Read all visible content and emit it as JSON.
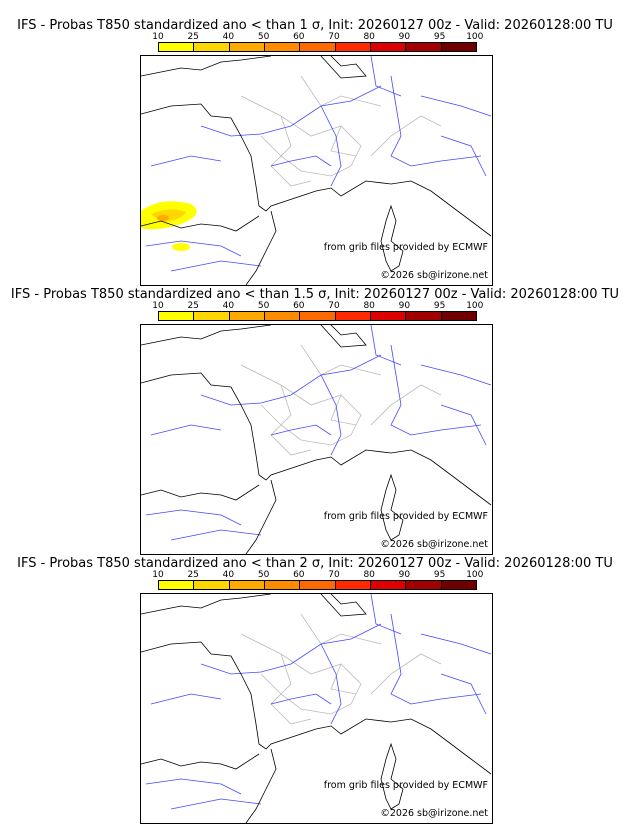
{
  "panels": [
    {
      "title": "IFS - Probas T850  standardized ano < than 1 σ, Init: 20260127 00z - Valid: 20260128:00 TU",
      "has_anomaly": true
    },
    {
      "title": "IFS - Probas T850  standardized ano < than 1.5 σ, Init: 20260127 00z - Valid: 20260128:00 TU",
      "has_anomaly": false
    },
    {
      "title": "IFS - Probas T850  standardized ano < than 2 σ, Init: 20260127 00z - Valid: 20260128:00 TU",
      "has_anomaly": false
    }
  ],
  "colorbar": {
    "ticks": [
      "10",
      "25",
      "40",
      "50",
      "60",
      "70",
      "80",
      "90",
      "95",
      "100"
    ],
    "colors": [
      "#ffff00",
      "#ffd700",
      "#ffaa00",
      "#ff8c00",
      "#ff6a00",
      "#ff2a00",
      "#dd0000",
      "#a00000",
      "#6e0000"
    ]
  },
  "credits": {
    "source": "from grib files provided by ECMWF",
    "copyright": "©2026 sb@irizone.net"
  }
}
